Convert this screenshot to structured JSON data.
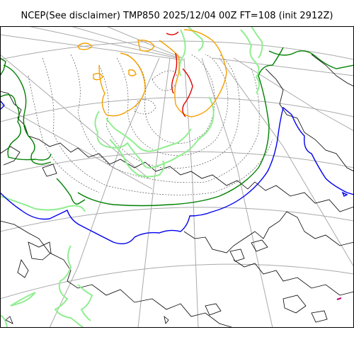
{
  "title": "NCEP(See disclaimer) TMP850 2025/12/04 00Z FT=108 (init 2912Z)",
  "map": {
    "variable": "TMP850",
    "projection": "polar stereographic",
    "colors": {
      "frame": "#000000",
      "graticule": "#aaaaaa",
      "coastline": "#000000",
      "isotherm_thin": "#555555",
      "contour_red": "#dd0000",
      "contour_orange": "#f5a000",
      "contour_lightgreen": "#90ee90",
      "contour_green": "#008000",
      "contour_blue": "#0000ee",
      "contour_magenta": "#c0007a"
    }
  }
}
